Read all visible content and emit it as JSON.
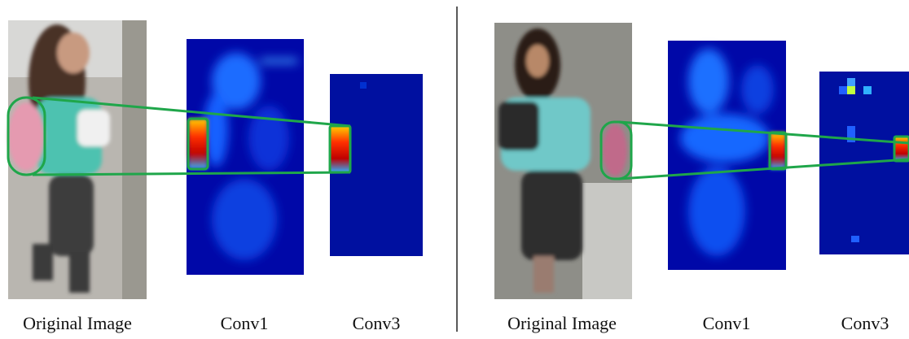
{
  "panels": [
    {
      "labels": [
        "Original Image",
        "Conv1",
        "Conv3"
      ]
    },
    {
      "labels": [
        "Original Image",
        "Conv1",
        "Conv3"
      ]
    }
  ]
}
